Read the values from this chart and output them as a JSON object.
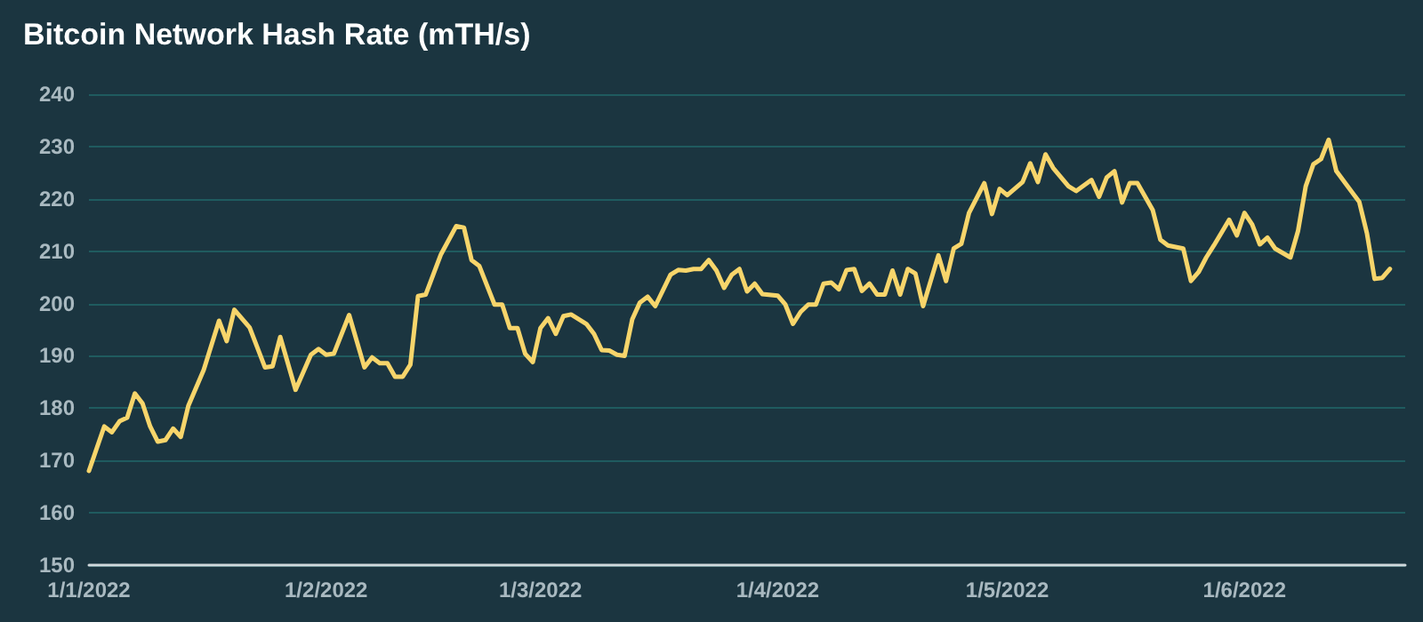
{
  "chart_data": {
    "type": "line",
    "title": "Bitcoin Network Hash Rate (mTH/s)",
    "x": [
      "2022-01-01",
      "2022-01-03",
      "2022-01-04",
      "2022-01-05",
      "2022-01-06",
      "2022-01-07",
      "2022-01-08",
      "2022-01-09",
      "2022-01-10",
      "2022-01-11",
      "2022-01-12",
      "2022-01-13",
      "2022-01-14",
      "2022-01-16",
      "2022-01-18",
      "2022-01-19",
      "2022-01-20",
      "2022-01-22",
      "2022-01-24",
      "2022-01-25",
      "2022-01-26",
      "2022-01-28",
      "2022-01-30",
      "2022-01-31",
      "2022-02-01",
      "2022-02-02",
      "2022-02-04",
      "2022-02-06",
      "2022-02-07",
      "2022-02-08",
      "2022-02-09",
      "2022-02-10",
      "2022-02-11",
      "2022-02-12",
      "2022-02-13",
      "2022-02-14",
      "2022-02-16",
      "2022-02-18",
      "2022-02-19",
      "2022-02-20",
      "2022-02-21",
      "2022-02-23",
      "2022-02-24",
      "2022-02-25",
      "2022-02-26",
      "2022-02-27",
      "2022-02-28",
      "2022-03-01",
      "2022-03-02",
      "2022-03-03",
      "2022-03-04",
      "2022-03-05",
      "2022-03-07",
      "2022-03-08",
      "2022-03-09",
      "2022-03-10",
      "2022-03-11",
      "2022-03-12",
      "2022-03-13",
      "2022-03-14",
      "2022-03-15",
      "2022-03-16",
      "2022-03-18",
      "2022-03-19",
      "2022-03-20",
      "2022-03-21",
      "2022-03-22",
      "2022-03-23",
      "2022-03-24",
      "2022-03-25",
      "2022-03-26",
      "2022-03-27",
      "2022-03-28",
      "2022-03-29",
      "2022-03-30",
      "2022-04-01",
      "2022-04-02",
      "2022-04-03",
      "2022-04-04",
      "2022-04-05",
      "2022-04-06",
      "2022-04-07",
      "2022-04-08",
      "2022-04-09",
      "2022-04-10",
      "2022-04-11",
      "2022-04-12",
      "2022-04-13",
      "2022-04-14",
      "2022-04-15",
      "2022-04-16",
      "2022-04-17",
      "2022-04-18",
      "2022-04-19",
      "2022-04-20",
      "2022-04-22",
      "2022-04-23",
      "2022-04-24",
      "2022-04-25",
      "2022-04-26",
      "2022-04-28",
      "2022-04-29",
      "2022-04-30",
      "2022-05-01",
      "2022-05-03",
      "2022-05-04",
      "2022-05-05",
      "2022-05-06",
      "2022-05-07",
      "2022-05-09",
      "2022-05-10",
      "2022-05-12",
      "2022-05-13",
      "2022-05-14",
      "2022-05-15",
      "2022-05-16",
      "2022-05-17",
      "2022-05-18",
      "2022-05-20",
      "2022-05-21",
      "2022-05-22",
      "2022-05-24",
      "2022-05-25",
      "2022-05-26",
      "2022-05-27",
      "2022-05-28",
      "2022-05-30",
      "2022-05-31",
      "2022-06-01",
      "2022-06-02",
      "2022-06-03",
      "2022-06-04",
      "2022-06-05",
      "2022-06-07",
      "2022-06-08",
      "2022-06-09",
      "2022-06-10",
      "2022-06-11",
      "2022-06-12",
      "2022-06-13",
      "2022-06-16",
      "2022-06-17",
      "2022-06-18",
      "2022-06-19",
      "2022-06-20"
    ],
    "series": [
      {
        "color": "#f7d56b",
        "values": [
          168,
          176.5,
          175.4,
          177.5,
          178.2,
          182.8,
          180.9,
          176.5,
          173.6,
          173.9,
          176.1,
          174.5,
          180.5,
          187.3,
          196.7,
          192.8,
          198.8,
          195.4,
          187.8,
          188,
          193.6,
          183.5,
          190.2,
          191.3,
          190.2,
          190.4,
          197.8,
          187.8,
          189.7,
          188.6,
          188.6,
          186,
          186,
          188.3,
          201.4,
          201.7,
          209.4,
          214.8,
          214.5,
          208.3,
          207.2,
          199.8,
          199.8,
          195.3,
          195.3,
          190.4,
          188.8,
          195.3,
          197.2,
          194.2,
          197.6,
          197.9,
          196.1,
          194.2,
          191.1,
          191,
          190.2,
          190,
          197,
          200.2,
          201.3,
          199.5,
          205.5,
          206.4,
          206.3,
          206.6,
          206.6,
          208.3,
          206.3,
          203,
          205.5,
          206.6,
          202.3,
          203.8,
          201.8,
          201.5,
          199.8,
          196.1,
          198.4,
          199.8,
          199.8,
          203.8,
          204,
          202.7,
          206.4,
          206.6,
          202.4,
          203.8,
          201.7,
          201.7,
          206.3,
          201.7,
          206.6,
          205.7,
          199.5,
          209.2,
          204.3,
          210.5,
          211.4,
          217.3,
          223,
          217.1,
          221.9,
          220.7,
          223.2,
          226.8,
          223.2,
          228.5,
          225.9,
          222.4,
          221.5,
          223.6,
          220.4,
          224.1,
          225.3,
          219.3,
          223,
          223,
          217.9,
          212.2,
          211.1,
          210.5,
          204.3,
          206,
          208.8,
          211.1,
          216,
          213,
          217.3,
          215.1,
          211.3,
          212.6,
          210.5,
          208.8,
          213.9,
          222.4,
          226.6,
          227.6,
          231.3,
          225.3,
          219.4,
          213.4,
          204.7,
          204.9,
          206.6
        ]
      }
    ],
    "xlim": [
      "2022-01-01",
      "2022-06-22"
    ],
    "xticks": [
      {
        "value": "2022-01-01",
        "label": "1/1/2022"
      },
      {
        "value": "2022-02-01",
        "label": "1/2/2022"
      },
      {
        "value": "2022-03-01",
        "label": "1/3/2022"
      },
      {
        "value": "2022-04-01",
        "label": "1/4/2022"
      },
      {
        "value": "2022-05-01",
        "label": "1/5/2022"
      },
      {
        "value": "2022-06-01",
        "label": "1/6/2022"
      }
    ],
    "ylim": [
      150,
      240
    ],
    "yticks": [
      150,
      160,
      170,
      180,
      190,
      200,
      210,
      220,
      230,
      240
    ],
    "grid": "y",
    "marker": "none",
    "line_style": "solid"
  }
}
